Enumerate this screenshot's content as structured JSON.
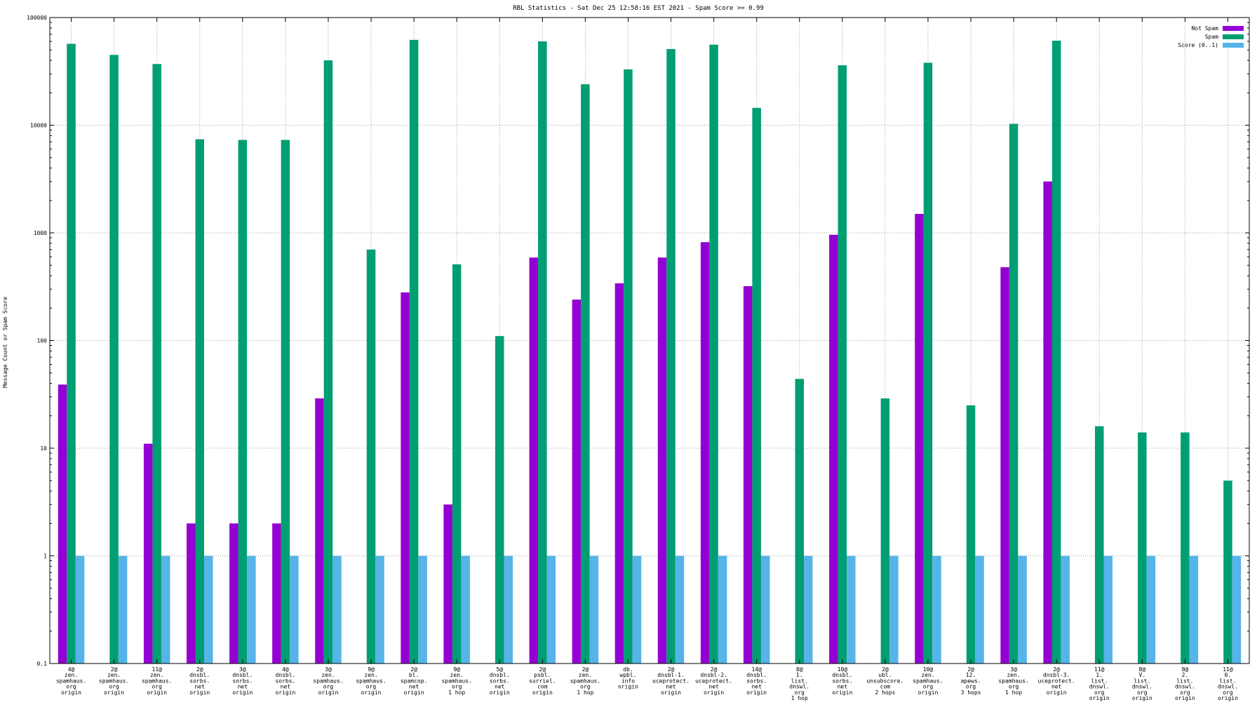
{
  "chart_data": {
    "type": "bar",
    "title": "RBL Statistics - Sat Dec 25 12:58:16 EST 2021 - Spam Score >= 0.99",
    "xlabel": "",
    "ylabel": "Message Count or Spam Score",
    "yscale": "log",
    "ylim": [
      0.1,
      100000
    ],
    "yticks": [
      0.1,
      1,
      10,
      100,
      1000,
      10000,
      100000
    ],
    "ytick_labels": [
      "0.1",
      "1",
      "10",
      "100",
      "1000",
      "10000",
      "100000"
    ],
    "grid": true,
    "legend_position": "top-right",
    "categories": [
      [
        "4@",
        "zen.",
        "spamhaus.",
        "org",
        "origin"
      ],
      [
        "2@",
        "zen.",
        "spamhaus.",
        "org",
        "origin"
      ],
      [
        "11@",
        "zen.",
        "spamhaus.",
        "org",
        "origin"
      ],
      [
        "2@",
        "dnsbl.",
        "sorbs.",
        "net",
        "origin"
      ],
      [
        "3@",
        "dnsbl.",
        "sorbs.",
        "net",
        "origin"
      ],
      [
        "4@",
        "dnsbl.",
        "sorbs.",
        "net",
        "origin"
      ],
      [
        "3@",
        "zen.",
        "spamhaus.",
        "org",
        "origin"
      ],
      [
        "9@",
        "zen.",
        "spamhaus.",
        "org",
        "origin"
      ],
      [
        "2@",
        "bl.",
        "spamcop.",
        "net",
        "origin"
      ],
      [
        "9@",
        "zen.",
        "spamhaus.",
        "org",
        "1 hop"
      ],
      [
        "5@",
        "dnsbl.",
        "sorbs.",
        "net",
        "origin"
      ],
      [
        "2@",
        "psbl.",
        "surriel.",
        "com",
        "origin"
      ],
      [
        "2@",
        "zen.",
        "spamhaus.",
        "org",
        "1 hop"
      ],
      [
        "db.",
        "wpbl.",
        "info",
        "origin"
      ],
      [
        "2@",
        "dnsbl-1.",
        "uceprotect.",
        "net",
        "origin"
      ],
      [
        "2@",
        "dnsbl-2.",
        "uceprotect.",
        "net",
        "origin"
      ],
      [
        "14@",
        "dnsbl.",
        "sorbs.",
        "net",
        "origin"
      ],
      [
        "8@",
        "1.",
        "list.",
        "dnswl.",
        "org",
        "1 hop"
      ],
      [
        "10@",
        "dnsbl.",
        "sorbs.",
        "net",
        "origin"
      ],
      [
        "2@",
        "ubl.",
        "unsubscore.",
        "com",
        "2 hops"
      ],
      [
        "10@",
        "zen.",
        "spamhaus.",
        "org",
        "origin"
      ],
      [
        "2@",
        "12.",
        "apews.",
        "org",
        "3 hops"
      ],
      [
        "3@",
        "zen.",
        "spamhaus.",
        "org",
        "1 hop"
      ],
      [
        "2@",
        "dnsbl-3.",
        "uceprotect.",
        "net",
        "origin"
      ],
      [
        "11@",
        "1.",
        "list.",
        "dnswl.",
        "org",
        "origin"
      ],
      [
        "8@",
        "V.",
        "list.",
        "dnswl.",
        "org",
        "origin"
      ],
      [
        "8@",
        "2.",
        "list.",
        "dnswl.",
        "org",
        "origin"
      ],
      [
        "11@",
        "0.",
        "list.",
        "dnswl.",
        "org",
        "origin"
      ]
    ],
    "series": [
      {
        "name": "Not Spam",
        "color": "#9400d3",
        "values": [
          39,
          null,
          11,
          2,
          2,
          2,
          29,
          null,
          280,
          3,
          null,
          590,
          240,
          340,
          590,
          820,
          320,
          null,
          960,
          null,
          1500,
          null,
          480,
          3000,
          null,
          null,
          null,
          null
        ]
      },
      {
        "name": "Spam",
        "color": "#009e73",
        "values": [
          57000,
          45000,
          37000,
          7400,
          7300,
          7300,
          40000,
          700,
          62000,
          510,
          110,
          60000,
          24000,
          33000,
          51000,
          56000,
          14500,
          44,
          36000,
          29,
          38000,
          25,
          10300,
          61000,
          16,
          14,
          14,
          5
        ]
      },
      {
        "name": "Score (0..1)",
        "color": "#56b4e9",
        "values": [
          1,
          1,
          1,
          1,
          1,
          1,
          1,
          1,
          1,
          1,
          1,
          1,
          1,
          1,
          1,
          1,
          1,
          1,
          1,
          1,
          1,
          1,
          1,
          1,
          1,
          1,
          1,
          1
        ]
      }
    ]
  }
}
